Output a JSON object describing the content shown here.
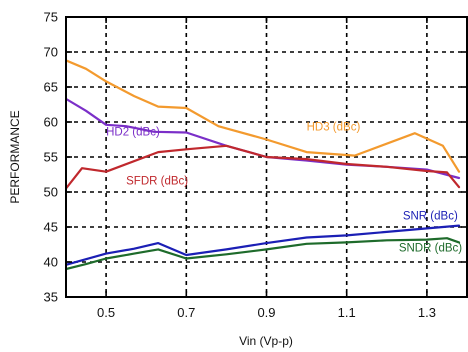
{
  "chart_data": {
    "type": "line",
    "xlabel": "Vin (Vp-p)",
    "ylabel": "PERFORMANCE",
    "xlim": [
      0.4,
      1.4
    ],
    "ylim": [
      35,
      75
    ],
    "xticks": [
      0.5,
      0.7,
      0.9,
      1.1,
      1.3
    ],
    "yticks": [
      35,
      40,
      45,
      50,
      55,
      60,
      65,
      70,
      75
    ],
    "grid": true,
    "series": [
      {
        "name": "HD3 (dBc)",
        "color": "#F39A2E",
        "points": [
          [
            0.4,
            68.8
          ],
          [
            0.45,
            67.6
          ],
          [
            0.5,
            65.8
          ],
          [
            0.57,
            63.7
          ],
          [
            0.63,
            62.2
          ],
          [
            0.7,
            62.0
          ],
          [
            0.78,
            59.4
          ],
          [
            0.9,
            57.5
          ],
          [
            1.0,
            55.7
          ],
          [
            1.12,
            55.2
          ],
          [
            1.27,
            58.4
          ],
          [
            1.34,
            56.6
          ],
          [
            1.38,
            52.9
          ]
        ],
        "label_at": [
          1.0,
          58.8
        ]
      },
      {
        "name": "HD2 (dBc)",
        "color": "#7B2FC8",
        "points": [
          [
            0.4,
            63.3
          ],
          [
            0.45,
            61.6
          ],
          [
            0.5,
            59.6
          ],
          [
            0.55,
            59.4
          ],
          [
            0.62,
            58.6
          ],
          [
            0.7,
            58.5
          ],
          [
            0.8,
            56.6
          ],
          [
            0.9,
            55.0
          ],
          [
            1.0,
            54.5
          ],
          [
            1.1,
            53.9
          ],
          [
            1.2,
            53.6
          ],
          [
            1.3,
            53.2
          ],
          [
            1.38,
            52.0
          ]
        ],
        "label_at": [
          0.5,
          58.1
        ]
      },
      {
        "name": "SFDR (dBc)",
        "color": "#C0282D",
        "points": [
          [
            0.4,
            50.5
          ],
          [
            0.44,
            53.4
          ],
          [
            0.5,
            52.9
          ],
          [
            0.63,
            55.7
          ],
          [
            0.7,
            56.1
          ],
          [
            0.8,
            56.6
          ],
          [
            0.9,
            55.0
          ],
          [
            1.0,
            54.7
          ],
          [
            1.1,
            54.0
          ],
          [
            1.2,
            53.6
          ],
          [
            1.3,
            53.0
          ],
          [
            1.35,
            52.8
          ],
          [
            1.38,
            50.7
          ]
        ],
        "label_at": [
          0.55,
          51.1
        ]
      },
      {
        "name": "SNR (dBc)",
        "color": "#1B1FB5",
        "points": [
          [
            0.4,
            39.6
          ],
          [
            0.45,
            40.4
          ],
          [
            0.5,
            41.2
          ],
          [
            0.57,
            41.9
          ],
          [
            0.63,
            42.7
          ],
          [
            0.7,
            41.0
          ],
          [
            0.8,
            41.8
          ],
          [
            0.9,
            42.7
          ],
          [
            1.0,
            43.5
          ],
          [
            1.1,
            43.8
          ],
          [
            1.2,
            44.3
          ],
          [
            1.3,
            44.8
          ],
          [
            1.38,
            45.2
          ]
        ],
        "label_at": [
          1.24,
          46.1
        ]
      },
      {
        "name": "SNDR (dBc)",
        "color": "#1E6B2B",
        "points": [
          [
            0.4,
            39.0
          ],
          [
            0.45,
            39.7
          ],
          [
            0.5,
            40.5
          ],
          [
            0.57,
            41.2
          ],
          [
            0.63,
            41.8
          ],
          [
            0.7,
            40.5
          ],
          [
            0.8,
            41.1
          ],
          [
            0.9,
            41.8
          ],
          [
            1.0,
            42.6
          ],
          [
            1.1,
            42.8
          ],
          [
            1.2,
            43.1
          ],
          [
            1.3,
            43.2
          ],
          [
            1.35,
            43.4
          ],
          [
            1.38,
            42.8
          ]
        ],
        "label_at": [
          1.23,
          41.5
        ]
      }
    ]
  }
}
